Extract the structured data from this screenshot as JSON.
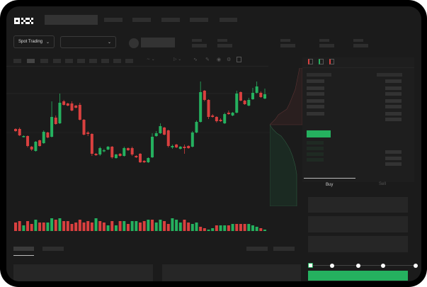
{
  "header": {
    "logo": "OKX",
    "nav_items": [
      "",
      "",
      "",
      "",
      ""
    ]
  },
  "market_bar": {
    "trading_type": "Spot Trading",
    "pair_select": ""
  },
  "order_panel": {
    "tabs": [
      {
        "label": "Buy",
        "active": true
      },
      {
        "label": "Sell",
        "active": false
      }
    ],
    "slider_value": 0,
    "slider_stops": 5
  },
  "colors": {
    "up": "#25b15f",
    "down": "#d9403f",
    "background": "#1b1b1b",
    "accent": "#25b15f"
  },
  "icons": [
    "chevron-down-icon",
    "orderbook-both-icon",
    "orderbook-bids-icon",
    "orderbook-asks-icon"
  ],
  "chart_data": {
    "type": "candlestick",
    "candles": [
      [
        58,
        55,
        59,
        54
      ],
      [
        58,
        49,
        60,
        48
      ],
      [
        47,
        48,
        49,
        46
      ],
      [
        48,
        34,
        49,
        32
      ],
      [
        33,
        29,
        34,
        27
      ],
      [
        27,
        40,
        41,
        26
      ],
      [
        42,
        34,
        43,
        33
      ],
      [
        38,
        54,
        56,
        37
      ],
      [
        53,
        46,
        54,
        45
      ],
      [
        47,
        75,
        97,
        46
      ],
      [
        74,
        65,
        77,
        64
      ],
      [
        66,
        95,
        108,
        65
      ],
      [
        97,
        92,
        99,
        91
      ],
      [
        94,
        91,
        95,
        90
      ],
      [
        94,
        84,
        97,
        83
      ],
      [
        91,
        88,
        92,
        87
      ],
      [
        92,
        71,
        95,
        70
      ],
      [
        71,
        50,
        72,
        49
      ],
      [
        53,
        51,
        55,
        48
      ],
      [
        51,
        23,
        52,
        20
      ],
      [
        23,
        21,
        24,
        20
      ],
      [
        22,
        31,
        33,
        20
      ],
      [
        27,
        28,
        30,
        25
      ],
      [
        29,
        33,
        34,
        28
      ],
      [
        33,
        18,
        34,
        16
      ],
      [
        17,
        22,
        23,
        16
      ],
      [
        23,
        20,
        24,
        19
      ],
      [
        20,
        31,
        33,
        19
      ],
      [
        31,
        28,
        32,
        27
      ],
      [
        31,
        22,
        33,
        20
      ],
      [
        20,
        18,
        21,
        17
      ],
      [
        23,
        11,
        24,
        10
      ],
      [
        13,
        11,
        14,
        10
      ],
      [
        11,
        17,
        18,
        10
      ],
      [
        18,
        47,
        52,
        17
      ],
      [
        48,
        52,
        55,
        47
      ],
      [
        52,
        62,
        66,
        51
      ],
      [
        60,
        50,
        61,
        49
      ],
      [
        56,
        34,
        57,
        32
      ],
      [
        32,
        34,
        36,
        30
      ],
      [
        36,
        32,
        37,
        31
      ],
      [
        30,
        33,
        34,
        29
      ],
      [
        33,
        31,
        36,
        23
      ],
      [
        34,
        31,
        35,
        30
      ],
      [
        33,
        53,
        55,
        32
      ],
      [
        53,
        68,
        70,
        52
      ],
      [
        68,
        110,
        125,
        67
      ],
      [
        112,
        99,
        113,
        97
      ],
      [
        99,
        75,
        100,
        72
      ],
      [
        77,
        75,
        79,
        74
      ],
      [
        75,
        69,
        76,
        67
      ],
      [
        71,
        69,
        73,
        68
      ],
      [
        66,
        79,
        81,
        65
      ],
      [
        81,
        79,
        84,
        78
      ],
      [
        77,
        81,
        82,
        76
      ],
      [
        81,
        108,
        112,
        80
      ],
      [
        110,
        98,
        111,
        97
      ],
      [
        98,
        93,
        99,
        92
      ],
      [
        91,
        99,
        102,
        90
      ],
      [
        100,
        109,
        116,
        99
      ],
      [
        109,
        118,
        125,
        108
      ],
      [
        109,
        103,
        111,
        102
      ],
      [
        101,
        107,
        115,
        100
      ]
    ],
    "volume": [
      6,
      7,
      4,
      7,
      5,
      8,
      6,
      6,
      6,
      9,
      8,
      9,
      7,
      7,
      5,
      6,
      8,
      6,
      7,
      6,
      9,
      7,
      6,
      4,
      7,
      4,
      7,
      7,
      5,
      7,
      7,
      6,
      7,
      8,
      8,
      6,
      8,
      7,
      5,
      9,
      8,
      6,
      8,
      6,
      5,
      6,
      3,
      2,
      1,
      2,
      4,
      4,
      4,
      4,
      5,
      5,
      5,
      5,
      5,
      4,
      3,
      2,
      1
    ],
    "volume_colors": [
      "down",
      "down",
      "up",
      "down",
      "down",
      "up",
      "down",
      "down",
      "up",
      "up",
      "down",
      "up",
      "down",
      "down",
      "down",
      "down",
      "down",
      "down",
      "down",
      "down",
      "up",
      "down",
      "down",
      "up",
      "down",
      "up",
      "down",
      "up",
      "down",
      "up",
      "up",
      "down",
      "down",
      "up",
      "down",
      "up",
      "up",
      "down",
      "down",
      "up",
      "up",
      "up",
      "down",
      "down",
      "up",
      "up",
      "down",
      "down",
      "up",
      "up",
      "down",
      "up",
      "up",
      "down",
      "up",
      "down",
      "down",
      "down",
      "up",
      "up",
      "up",
      "down",
      "up"
    ]
  }
}
